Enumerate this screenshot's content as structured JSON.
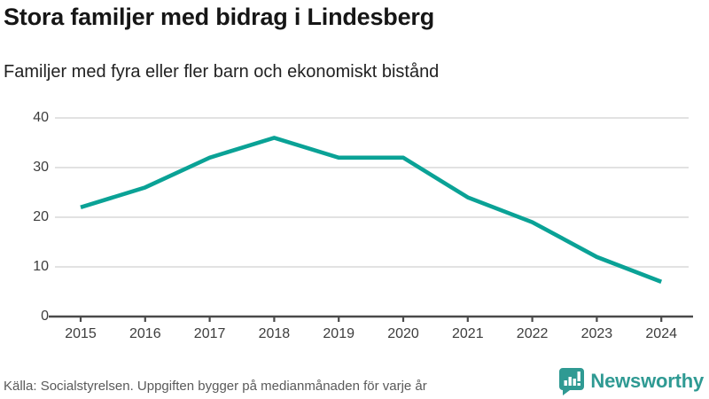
{
  "header": {
    "title": "Stora familjer med bidrag i Lindesberg",
    "subtitle": "Familjer med fyra eller fler barn och ekonomiskt bistånd"
  },
  "footer": {
    "source": "Källa: Socialstyrelsen. Uppgiften bygger på medianmånaden för varje år",
    "brand": "Newsworthy"
  },
  "colors": {
    "line": "#0aa296",
    "grid": "#e2e2e2",
    "axis": "#4a4a4a",
    "tick_text": "#3d3d3d",
    "brand": "#2f9a93",
    "source_text": "#5a5a5a"
  },
  "chart_data": {
    "type": "line",
    "categories": [
      "2015",
      "2016",
      "2017",
      "2018",
      "2019",
      "2020",
      "2021",
      "2022",
      "2023",
      "2024"
    ],
    "values": [
      22,
      26,
      32,
      36,
      32,
      32,
      24,
      19,
      12,
      7
    ],
    "title": "Stora familjer med bidrag i Lindesberg",
    "subtitle": "Familjer med fyra eller fler barn och ekonomiskt bistånd",
    "xlabel": "",
    "ylabel": "",
    "ylim": [
      0,
      40
    ],
    "y_ticks": [
      0,
      10,
      20,
      30,
      40
    ],
    "grid": "horizontal",
    "legend": "none"
  }
}
